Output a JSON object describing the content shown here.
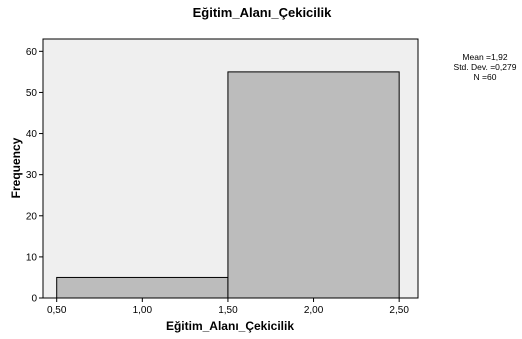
{
  "chart_data": {
    "type": "bar",
    "title": "Eğitim_Alanı_Çekicilik",
    "xlabel": "Eğitim_Alanı_Çekicilik",
    "ylabel": "Frequency",
    "bins": [
      {
        "start": 0.5,
        "end": 1.5,
        "value": 5
      },
      {
        "start": 1.5,
        "end": 2.5,
        "value": 55
      }
    ],
    "xlim": [
      0.42,
      2.61
    ],
    "ylim": [
      0,
      63
    ],
    "xticks": [
      0.5,
      1.0,
      1.5,
      2.0,
      2.5
    ],
    "xtick_labels": [
      "0,50",
      "1,00",
      "1,50",
      "2,00",
      "2,50"
    ],
    "yticks": [
      0,
      10,
      20,
      30,
      40,
      50,
      60
    ],
    "ytick_labels": [
      "0",
      "10",
      "20",
      "30",
      "40",
      "50",
      "60"
    ],
    "stats": [
      "Mean =1,92",
      "Std. Dev. =0,279",
      "N =60"
    ],
    "grid": false,
    "colors": {
      "plot_bg": "#efefef",
      "bar_fill": "#bcbcbc",
      "bar_stroke": "#000000",
      "frame": "#000000"
    }
  }
}
